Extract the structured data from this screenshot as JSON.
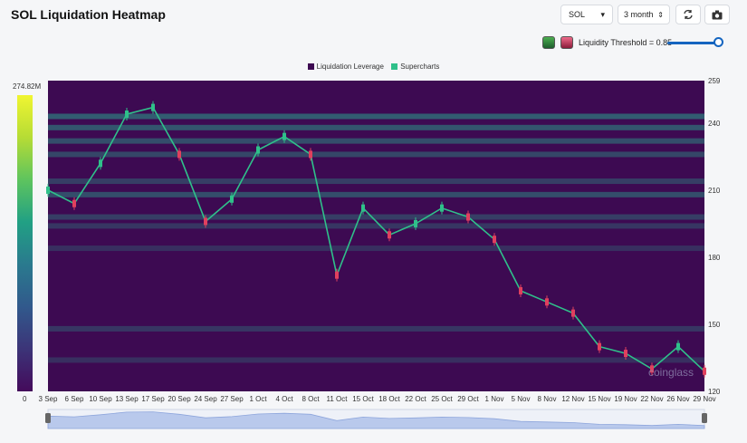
{
  "title": "SOL Liquidation Heatmap",
  "controls": {
    "symbol": "SOL",
    "range": "3 month",
    "threshold_label": "Liquidity Threshold = 0.85",
    "threshold_value": 0.85
  },
  "icons": {
    "symbol_caret": "caret-down-icon",
    "range_caret": "sort-updown-icon",
    "refresh": "refresh-icon",
    "camera": "camera-icon"
  },
  "colorbar": {
    "max_label": "274.82M",
    "min_label": "0"
  },
  "watermark": "coinglass",
  "colors": {
    "background": "#3d0a52",
    "candle_up": "#2fc08a",
    "candle_down": "#e0405e",
    "liquidity_legend": "#3d0a52",
    "supercharts_legend": "#2fc08a"
  },
  "chart_data": {
    "type": "heatmap",
    "title": "",
    "legend": [
      "Liquidation Leverage",
      "Supercharts"
    ],
    "legend_position": "top-center",
    "ylim": [
      120,
      259
    ],
    "y_ticks": [
      259,
      240,
      210,
      180,
      150,
      120
    ],
    "x_ticks": [
      "3 Sep",
      "6 Sep",
      "10 Sep",
      "13 Sep",
      "17 Sep",
      "20 Sep",
      "24 Sep",
      "27 Sep",
      "1 Oct",
      "4 Oct",
      "8 Oct",
      "11 Oct",
      "15 Oct",
      "18 Oct",
      "22 Oct",
      "25 Oct",
      "29 Oct",
      "1 Nov",
      "5 Nov",
      "8 Nov",
      "12 Nov",
      "15 Nov",
      "19 Nov",
      "22 Nov",
      "26 Nov",
      "29 Nov"
    ],
    "price_series": {
      "name": "Supercharts",
      "x": [
        "3 Sep",
        "6 Sep",
        "10 Sep",
        "13 Sep",
        "17 Sep",
        "20 Sep",
        "24 Sep",
        "27 Sep",
        "1 Oct",
        "4 Oct",
        "8 Oct",
        "11 Oct",
        "15 Oct",
        "18 Oct",
        "22 Oct",
        "25 Oct",
        "29 Oct",
        "1 Nov",
        "5 Nov",
        "8 Nov",
        "12 Nov",
        "15 Nov",
        "19 Nov",
        "22 Nov",
        "26 Nov",
        "29 Nov"
      ],
      "y": [
        210,
        204,
        222,
        244,
        247,
        226,
        196,
        206,
        228,
        234,
        226,
        172,
        202,
        190,
        195,
        202,
        198,
        188,
        165,
        160,
        155,
        140,
        137,
        130,
        140,
        129
      ]
    },
    "liquidity_bands": [
      {
        "price": 243,
        "intensity": 0.55
      },
      {
        "price": 238,
        "intensity": 0.5
      },
      {
        "price": 232,
        "intensity": 0.45
      },
      {
        "price": 226,
        "intensity": 0.4
      },
      {
        "price": 214,
        "intensity": 0.35
      },
      {
        "price": 208,
        "intensity": 0.45
      },
      {
        "price": 198,
        "intensity": 0.35
      },
      {
        "price": 194,
        "intensity": 0.3
      },
      {
        "price": 184,
        "intensity": 0.25
      },
      {
        "price": 148,
        "intensity": 0.3
      },
      {
        "price": 134,
        "intensity": 0.25
      }
    ],
    "grid": false
  }
}
